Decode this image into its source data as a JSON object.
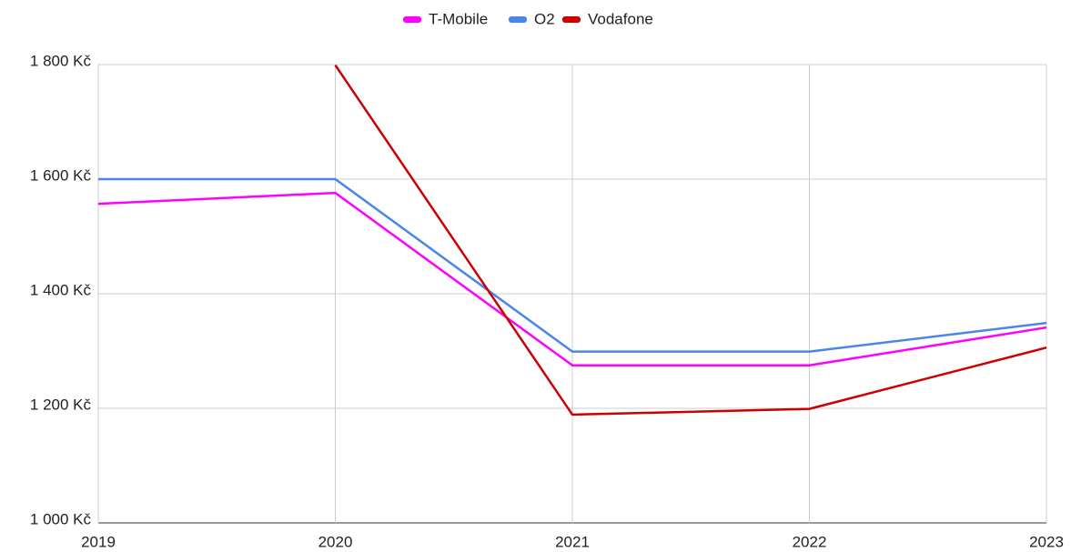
{
  "chart_data": {
    "type": "line",
    "categories": [
      "2019",
      "2020",
      "2021",
      "2022",
      "2023"
    ],
    "series": [
      {
        "name": "T-Mobile",
        "color": "#ff00ff",
        "values": [
          1557,
          1576,
          1275,
          1275,
          1341
        ]
      },
      {
        "name": "O2",
        "color": "#4a86e8",
        "values": [
          1600,
          1600,
          1299,
          1299,
          1349
        ]
      },
      {
        "name": "Vodafone",
        "color": "#cc0000",
        "values": [
          null,
          1799,
          1189,
          1199,
          1306
        ]
      }
    ],
    "ylim": [
      1000,
      1800
    ],
    "yticks": [
      {
        "value": 1000,
        "label": "1 000 Kč"
      },
      {
        "value": 1200,
        "label": "1 200 Kč"
      },
      {
        "value": 1400,
        "label": "1 400 Kč"
      },
      {
        "value": 1600,
        "label": "1 600 Kč"
      },
      {
        "value": 1800,
        "label": "1 800 Kč"
      }
    ],
    "grid": true,
    "legend": "top"
  }
}
